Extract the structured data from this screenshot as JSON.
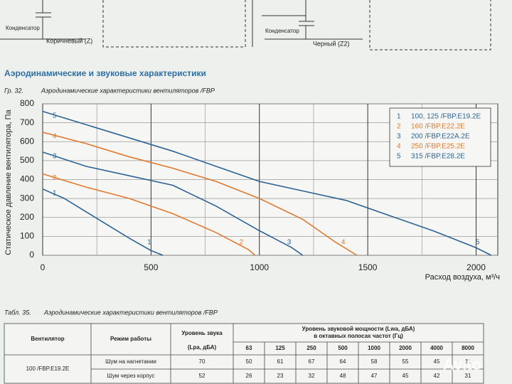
{
  "diagram": {
    "left_capacitor": "Конденсатор",
    "left_wire": "Коричневый (Z)",
    "right_capacitor": "Конденсатор",
    "right_wire": "Черный (Z2)"
  },
  "section_title": "Аэродинамические и звуковые характеристики",
  "figure": {
    "number": "Гр. 32.",
    "caption": "Аэродинамические характеристики вентиляторов /FBP"
  },
  "chart_data": {
    "type": "line",
    "xlabel": "Расход воздуха, м³/ч",
    "ylabel": "Статическое давление вентилятора, Па",
    "xlim": [
      0,
      2100
    ],
    "ylim": [
      0,
      800
    ],
    "xticks": [
      0,
      500,
      1000,
      1500,
      2000
    ],
    "x_minor_ticks": [
      250,
      750,
      1250,
      1750
    ],
    "yticks": [
      0,
      100,
      200,
      300,
      400,
      500,
      600,
      700,
      800
    ],
    "grid": true,
    "legend": "upper right",
    "series": [
      {
        "label": "1",
        "name": "100, 125 /FBP.E19.2E",
        "color": "#2d6394",
        "x": [
          0,
          100,
          200,
          300,
          400,
          500,
          555
        ],
        "values": [
          350,
          300,
          230,
          160,
          90,
          25,
          0
        ]
      },
      {
        "label": "2",
        "name": "160 /FBP.E22.2E",
        "color": "#e0792f",
        "x": [
          0,
          200,
          400,
          600,
          800,
          950,
          980
        ],
        "values": [
          430,
          360,
          300,
          220,
          120,
          30,
          0
        ]
      },
      {
        "label": "3",
        "name": "200 /FBP.E22A.2E",
        "color": "#2d6394",
        "x": [
          0,
          200,
          400,
          600,
          800,
          1000,
          1150,
          1200
        ],
        "values": [
          545,
          470,
          420,
          370,
          260,
          130,
          40,
          0
        ]
      },
      {
        "label": "4",
        "name": "250 /FBP.E25.2E",
        "color": "#e0792f",
        "x": [
          0,
          200,
          400,
          600,
          800,
          1000,
          1200,
          1350,
          1450
        ],
        "values": [
          650,
          590,
          520,
          460,
          390,
          300,
          190,
          70,
          0
        ]
      },
      {
        "label": "5",
        "name": "315 /FBP.E28.2E",
        "color": "#2d6394",
        "x": [
          0,
          200,
          400,
          600,
          800,
          1000,
          1200,
          1400,
          1600,
          1800,
          2000,
          2070
        ],
        "values": [
          760,
          690,
          620,
          550,
          470,
          390,
          340,
          290,
          210,
          130,
          40,
          0
        ]
      }
    ]
  },
  "table_caption": {
    "number": "Табл. 35.",
    "text": "Аэродинамические характеристики вентиляторов /FBP"
  },
  "table": {
    "headers": [
      "Вентилятор",
      "Режим работы",
      "Уровень звука",
      "(Lpa, дБА)",
      "Уровень звуковой мощности (Lwa, дБА)",
      "в октавных полосах частот (Гц)"
    ],
    "frequencies": [
      63,
      125,
      250,
      500,
      1000,
      2000,
      4000,
      8000
    ],
    "fan": "100 /FBP.E19.2E",
    "rows": [
      {
        "mode": "Шум на нагнетании",
        "level": 70,
        "bands": [
          50,
          61,
          67,
          64,
          58,
          55,
          45,
          31
        ]
      },
      {
        "mode": "Шум через корпус",
        "level": 52,
        "bands": [
          26,
          23,
          32,
          48,
          47,
          45,
          42,
          31
        ]
      }
    ]
  },
  "watermark": "Avito"
}
